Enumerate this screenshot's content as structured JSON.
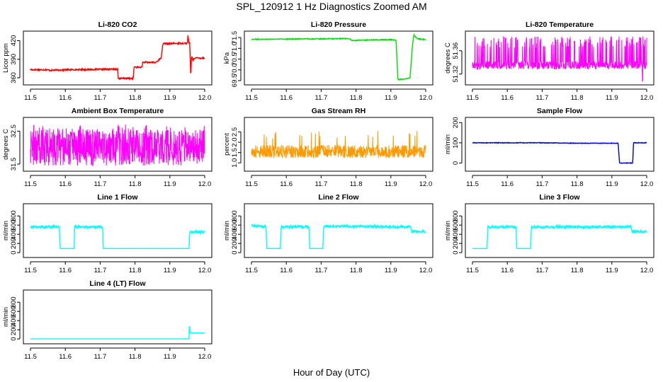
{
  "figure_title": "SPL_120912  1 Hz Diagnostics Zoomed AM",
  "x_axis_label": "Hour of Day (UTC)",
  "chart_data": [
    {
      "id": "co2",
      "type": "line",
      "title": "Li-820 CO2",
      "ylabel": "Licor ppm",
      "color": "#ff0000",
      "xlim": [
        11.5,
        12.0
      ],
      "xticks": [
        11.5,
        11.6,
        11.7,
        11.8,
        11.9,
        12.0
      ],
      "ylim": [
        352,
        432
      ],
      "yticks": [
        360,
        390,
        420
      ],
      "noise": 1.2,
      "x": [
        11.5,
        11.548,
        11.556,
        11.6,
        11.75,
        11.752,
        11.795,
        11.797,
        11.82,
        11.822,
        11.855,
        11.857,
        11.875,
        11.88,
        11.94,
        11.95,
        11.952,
        11.955,
        11.957,
        11.96,
        11.962,
        11.967,
        11.97,
        12.0
      ],
      "y": [
        373,
        373,
        372,
        373,
        374,
        359,
        359,
        377,
        377,
        385,
        385,
        384,
        392,
        415,
        416,
        416,
        428,
        416,
        416,
        360,
        395,
        388,
        392,
        392
      ]
    },
    {
      "id": "pressure",
      "type": "line",
      "title": "Li-820 Pressure",
      "ylabel": "kPa",
      "color": "#00dd00",
      "xlim": [
        11.5,
        12.0
      ],
      "xticks": [
        11.5,
        11.6,
        11.7,
        11.8,
        11.9,
        12.0
      ],
      "ylim": [
        69.4,
        71.7
      ],
      "yticks": [
        69.5,
        70.0,
        70.5,
        71.0,
        71.5
      ],
      "noise": 0.02,
      "x": [
        11.5,
        11.6,
        11.7,
        11.78,
        11.79,
        11.82,
        11.86,
        11.9,
        11.915,
        11.92,
        11.922,
        11.95,
        11.955,
        11.962,
        11.966,
        11.975,
        12.0
      ],
      "y": [
        71.42,
        71.43,
        71.44,
        71.45,
        71.36,
        71.38,
        71.4,
        71.4,
        71.38,
        69.6,
        69.55,
        69.6,
        69.62,
        71.15,
        71.62,
        71.45,
        71.4
      ]
    },
    {
      "id": "licor_temp",
      "type": "noise",
      "title": "Li-820 Temperature",
      "ylabel": "degrees C",
      "color": "#ff00ff",
      "xlim": [
        11.5,
        12.0
      ],
      "xticks": [
        11.5,
        11.6,
        11.7,
        11.8,
        11.9,
        12.0
      ],
      "ylim": [
        51.305,
        51.39
      ],
      "yticks": [
        51.32,
        51.36
      ],
      "base": 51.335,
      "spread": 0.007,
      "spike_to": 51.385,
      "spike_rate": 0.22,
      "dips": [
        [
          11.988,
          51.308
        ]
      ]
    },
    {
      "id": "box_temp",
      "type": "noise",
      "title": "Ambient Box Temperature",
      "ylabel": "degrees C",
      "color": "#ff00ff",
      "xlim": [
        11.5,
        12.0
      ],
      "xticks": [
        11.5,
        11.6,
        11.7,
        11.8,
        11.9,
        12.0
      ],
      "ylim": [
        31.35,
        32.85
      ],
      "yticks": [
        31.5,
        32.5
      ],
      "base": 32.0,
      "spread": 0.55,
      "spike_to": 32.7,
      "spike_rate": 0.06,
      "dips": []
    },
    {
      "id": "rh",
      "type": "noise",
      "title": "Gas Stream RH",
      "ylabel": "percent",
      "color": "#ff9900",
      "xlim": [
        11.5,
        12.0
      ],
      "xticks": [
        11.5,
        11.6,
        11.7,
        11.8,
        11.9,
        12.0
      ],
      "ylim": [
        0.7,
        3.1
      ],
      "yticks": [
        1.0,
        1.5,
        2.0,
        2.5
      ],
      "base": 1.55,
      "spread": 0.32,
      "spike_to": 2.55,
      "spike_rate": 0.04,
      "dips": []
    },
    {
      "id": "sample_flow",
      "type": "line",
      "title": "Sample Flow",
      "ylabel": "ml/min",
      "color": "#0000cc",
      "xlim": [
        11.5,
        12.0
      ],
      "xticks": [
        11.5,
        11.6,
        11.7,
        11.8,
        11.9,
        12.0
      ],
      "ylim": [
        -30,
        215
      ],
      "yticks": [
        0,
        100,
        200
      ],
      "noise": 1.5,
      "x": [
        11.5,
        11.7,
        11.8,
        11.918,
        11.922,
        11.96,
        11.962,
        12.0
      ],
      "y": [
        100,
        100,
        98,
        98,
        0,
        0,
        100,
        100
      ]
    },
    {
      "id": "line1",
      "type": "line",
      "title": "Line 1 Flow",
      "ylabel": "ml/min",
      "color": "#00ffff",
      "xlim": [
        11.5,
        12.0
      ],
      "xticks": [
        11.5,
        11.6,
        11.7,
        11.8,
        11.9,
        12.0
      ],
      "ylim": [
        -60,
        1020
      ],
      "yticks": [
        0,
        200,
        400,
        600,
        800
      ],
      "noise": 28,
      "noise_above": 300,
      "x": [
        11.5,
        11.583,
        11.585,
        11.625,
        11.627,
        11.707,
        11.709,
        11.955,
        11.957,
        12.0
      ],
      "y": [
        560,
        560,
        90,
        90,
        560,
        560,
        90,
        90,
        450,
        450
      ]
    },
    {
      "id": "line2",
      "type": "line",
      "title": "Line 2 Flow",
      "ylabel": "ml/min",
      "color": "#00ffff",
      "xlim": [
        11.5,
        12.0
      ],
      "xticks": [
        11.5,
        11.6,
        11.7,
        11.8,
        11.9,
        12.0
      ],
      "ylim": [
        -60,
        1020
      ],
      "yticks": [
        0,
        200,
        400,
        600,
        800
      ],
      "noise": 28,
      "noise_above": 300,
      "x": [
        11.5,
        11.542,
        11.544,
        11.583,
        11.585,
        11.665,
        11.667,
        11.705,
        11.707,
        11.957,
        11.96,
        12.0
      ],
      "y": [
        590,
        560,
        90,
        90,
        560,
        560,
        90,
        90,
        580,
        560,
        460,
        460
      ]
    },
    {
      "id": "line3",
      "type": "line",
      "title": "Line 3 Flow",
      "ylabel": "ml/min",
      "color": "#00ffff",
      "xlim": [
        11.5,
        12.0
      ],
      "xticks": [
        11.5,
        11.6,
        11.7,
        11.8,
        11.9,
        12.0
      ],
      "ylim": [
        -60,
        1020
      ],
      "yticks": [
        0,
        200,
        400,
        600,
        800
      ],
      "noise": 28,
      "noise_above": 300,
      "x": [
        11.5,
        11.542,
        11.544,
        11.625,
        11.627,
        11.667,
        11.669,
        11.955,
        11.958,
        12.0
      ],
      "y": [
        90,
        90,
        560,
        560,
        90,
        90,
        560,
        560,
        460,
        460
      ]
    },
    {
      "id": "line4",
      "type": "line",
      "title": "Line 4 (LT) Flow",
      "ylabel": "ml/min",
      "color": "#00ffff",
      "xlim": [
        11.5,
        12.0
      ],
      "xticks": [
        11.5,
        11.6,
        11.7,
        11.8,
        11.9,
        12.0
      ],
      "ylim": [
        -60,
        1020
      ],
      "yticks": [
        0,
        200,
        400,
        600,
        800
      ],
      "noise": 0,
      "x": [
        11.5,
        11.955,
        11.956,
        11.958,
        11.96,
        12.0
      ],
      "y": [
        0,
        0,
        350,
        130,
        130,
        130
      ]
    }
  ]
}
